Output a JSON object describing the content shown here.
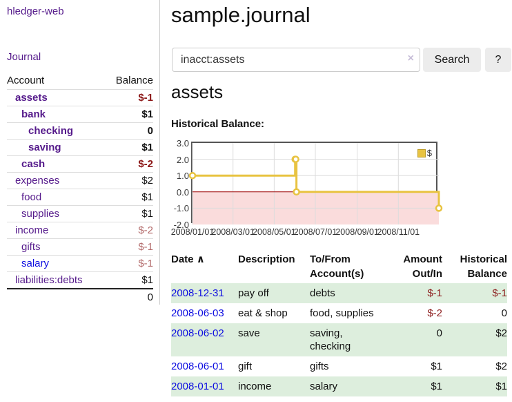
{
  "app": {
    "title": "hledger-web",
    "nav_journal": "Journal"
  },
  "sidebar": {
    "columns": {
      "account": "Account",
      "balance": "Balance"
    },
    "accounts": [
      {
        "name": "assets",
        "balance": "$-1",
        "indent": 1,
        "bold": true,
        "neg": "strong"
      },
      {
        "name": "bank",
        "balance": "$1",
        "indent": 2,
        "bold": true
      },
      {
        "name": "checking",
        "balance": "0",
        "indent": 3,
        "bold": true
      },
      {
        "name": "saving",
        "balance": "$1",
        "indent": 3,
        "bold": true
      },
      {
        "name": "cash",
        "balance": "$-2",
        "indent": 2,
        "bold": true,
        "neg": "strong"
      },
      {
        "name": "expenses",
        "balance": "$2",
        "indent": 1
      },
      {
        "name": "food",
        "balance": "$1",
        "indent": 2
      },
      {
        "name": "supplies",
        "balance": "$1",
        "indent": 2
      },
      {
        "name": "income",
        "balance": "$-2",
        "indent": 1,
        "neg": "soft"
      },
      {
        "name": "gifts",
        "balance": "$-1",
        "indent": 2,
        "neg": "soft"
      },
      {
        "name": "salary",
        "balance": "$-1",
        "indent": 2,
        "neg": "soft",
        "link": "blue"
      },
      {
        "name": "liabilities:debts",
        "balance": "$1",
        "indent": 1
      }
    ],
    "total": "0"
  },
  "page": {
    "title": "sample.journal"
  },
  "search": {
    "value": "inacct:assets",
    "clear_icon": "×",
    "search_button": "Search",
    "help_button": "?"
  },
  "account_view": {
    "heading": "assets",
    "chart_title": "Historical Balance:"
  },
  "chart_data": {
    "type": "line",
    "title": "Historical Balance:",
    "series": [
      {
        "name": "$",
        "color": "#e8c341",
        "step": true,
        "points": [
          [
            "2008/01/01",
            1
          ],
          [
            "2008/06/01",
            2
          ],
          [
            "2008/06/02",
            2
          ],
          [
            "2008/06/03",
            0
          ],
          [
            "2008/12/31",
            -1
          ]
        ]
      }
    ],
    "ylim": [
      -2,
      3
    ],
    "y_ticks": [
      "3.0",
      "2.0",
      "1.0",
      "0.0",
      "-1.0",
      "-2.0"
    ],
    "x_ticks": [
      "2008/01/01",
      "2008/03/01",
      "2008/05/01",
      "2008/07/01",
      "2008/09/01",
      "2008/11/01"
    ],
    "grid": true,
    "legend_position": "top-right",
    "negative_region_color": "#fadcdc",
    "zero_line_color": "#a00000",
    "grid_color": "#dcdcdc",
    "border_color": "#545454"
  },
  "register": {
    "headers": {
      "date": "Date",
      "sort_icon": "∧",
      "description": "Description",
      "tofrom_line1": "To/From",
      "tofrom_line2": "Account(s)",
      "amount_line1": "Amount",
      "amount_line2": "Out/In",
      "balance_line1": "Historical",
      "balance_line2": "Balance"
    },
    "rows": [
      {
        "date": "2008-12-31",
        "description": "pay off",
        "tofrom_lines": [
          "debts"
        ],
        "amount": "$-1",
        "amount_negative": true,
        "balance": "$-1",
        "balance_negative": true
      },
      {
        "date": "2008-06-03",
        "description": "eat & shop",
        "tofrom_lines": [
          "food, supplies"
        ],
        "amount": "$-2",
        "amount_negative": true,
        "balance": "0",
        "balance_negative": false
      },
      {
        "date": "2008-06-02",
        "description": "save",
        "tofrom_lines": [
          "saving,",
          "checking"
        ],
        "amount": "0",
        "amount_negative": false,
        "balance": "$2",
        "balance_negative": false
      },
      {
        "date": "2008-06-01",
        "description": "gift",
        "tofrom_lines": [
          "gifts"
        ],
        "amount": "$1",
        "amount_negative": false,
        "balance": "$2",
        "balance_negative": false
      },
      {
        "date": "2008-01-01",
        "description": "income",
        "tofrom_lines": [
          "salary"
        ],
        "amount": "$1",
        "amount_negative": false,
        "balance": "$1",
        "balance_negative": false
      }
    ]
  }
}
